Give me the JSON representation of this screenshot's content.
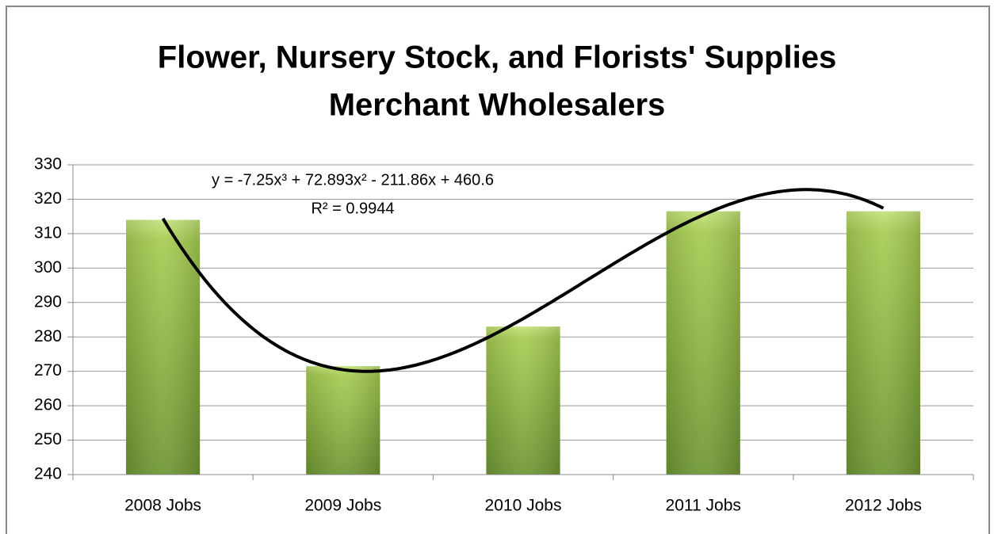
{
  "chart_data": {
    "type": "bar",
    "title": [
      "Flower, Nursery Stock, and Florists' Supplies",
      "Merchant Wholesalers"
    ],
    "categories": [
      "2008 Jobs",
      "2009 Jobs",
      "2010 Jobs",
      "2011 Jobs",
      "2012 Jobs"
    ],
    "values": [
      314,
      271.5,
      283,
      316.5,
      316.5
    ],
    "color": "#8db543",
    "ylim": [
      240,
      330
    ],
    "yticks": [
      240,
      250,
      260,
      270,
      280,
      290,
      300,
      310,
      320,
      330
    ],
    "grid": true,
    "trendline": {
      "type": "polynomial",
      "coefficients": [
        -7.25,
        72.893,
        -211.86,
        460.6
      ],
      "equation": "y = -7.25x³ + 72.893x² - 211.86x + 460.6",
      "r_squared": "R² = 0.9944"
    }
  }
}
